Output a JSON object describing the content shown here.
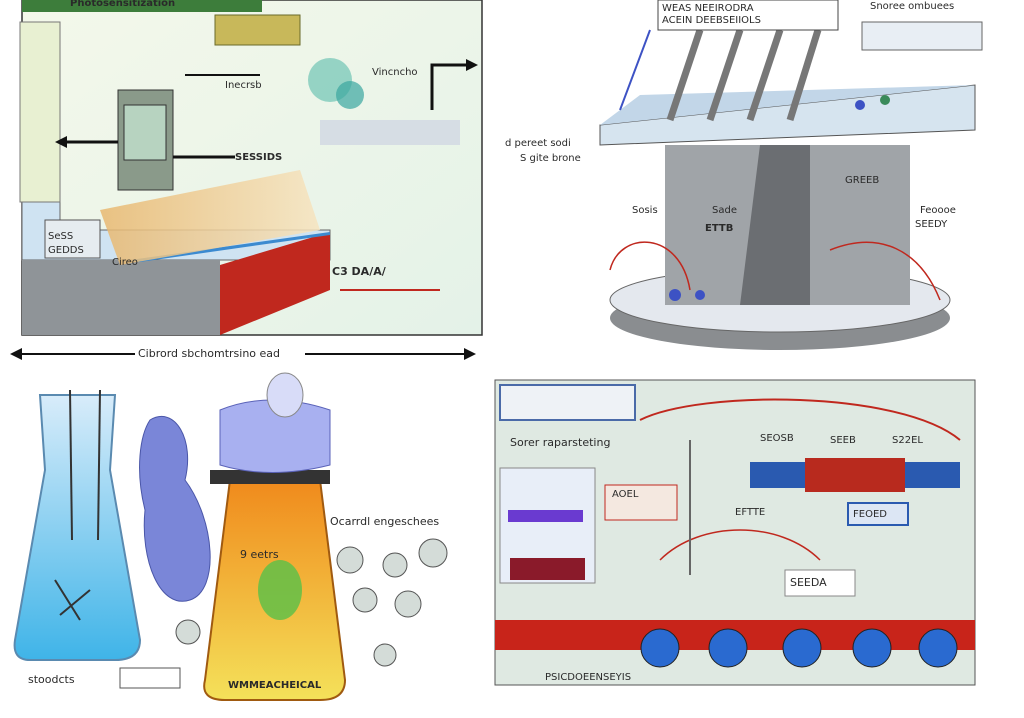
{
  "top_left": {
    "banner": "Photosensitization",
    "labels": [
      "Inecrsb",
      "Vincncho",
      "SESSIDS",
      "GEDDS",
      "Cireo",
      "C3 DA/A/",
      "SeSS"
    ]
  },
  "divider_caption": "Cibrord sbchomtrsino ead",
  "top_right": {
    "labels": [
      "WEAS  NEEIRODRA",
      "ACEIN  DEEBSEIIOLS",
      "Snoree ombuees",
      "d pereet sodi",
      "S gite brone",
      "Sosis",
      "Sade",
      "ETTB",
      "GREEB",
      "Feoooe",
      "SEEDY"
    ]
  },
  "bottom_left": {
    "labels": [
      "9 eetrs",
      "Ocarrdl engeschees",
      "stoodcts",
      "WMMEACHEICAL"
    ]
  },
  "bottom_right": {
    "labels": [
      "Sorer raparsteting",
      "SEOSB",
      "SEEB",
      "S22EL",
      "FEOED",
      "SEEDA",
      "AOEL",
      "PSICDOEENSEYIS",
      "EFTTE"
    ]
  }
}
